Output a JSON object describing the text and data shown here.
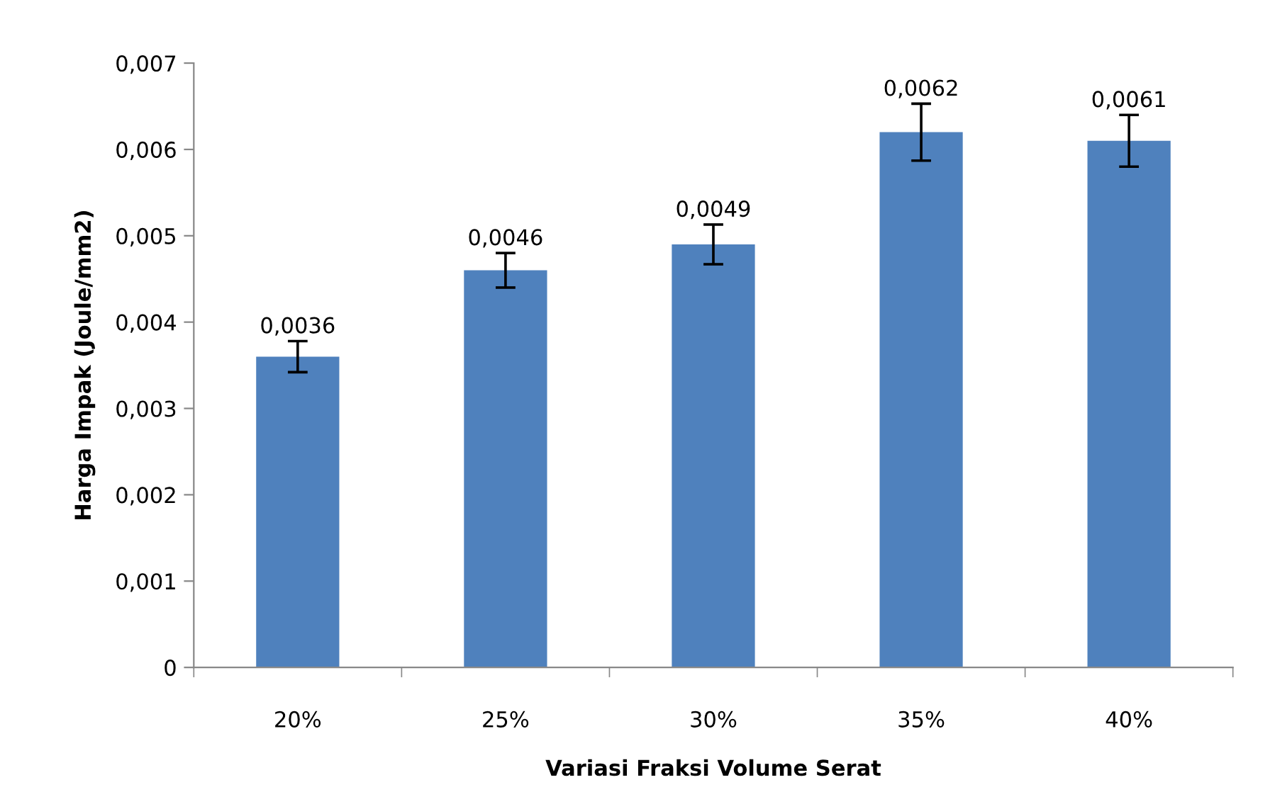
{
  "chart_data": {
    "type": "bar",
    "xlabel": "Variasi Fraksi Volume Serat",
    "ylabel": "Harga Impak (Joule/mm2)",
    "categories": [
      "20%",
      "25%",
      "30%",
      "35%",
      "40%"
    ],
    "values": [
      0.0036,
      0.0046,
      0.0049,
      0.0062,
      0.0061
    ],
    "errors": [
      0.00018,
      0.0002,
      0.00023,
      0.00033,
      0.0003
    ],
    "value_labels": [
      "0,0036",
      "0,0046",
      "0,0049",
      "0,0062",
      "0,0061"
    ],
    "color": "#4f81bd",
    "ylim": [
      0,
      0.007
    ],
    "yticks": [
      0,
      {
        "value": 0.001,
        "label": "0,001"
      },
      {
        "value": 0.002,
        "label": "0,002"
      },
      {
        "value": 0.003,
        "label": "0,003"
      },
      {
        "value": 0.004,
        "label": "0,004"
      },
      {
        "value": 0.005,
        "label": "0,005"
      },
      {
        "value": 0.006,
        "label": "0,006"
      },
      {
        "value": 0.007,
        "label": "0,007"
      }
    ],
    "grid": false
  }
}
